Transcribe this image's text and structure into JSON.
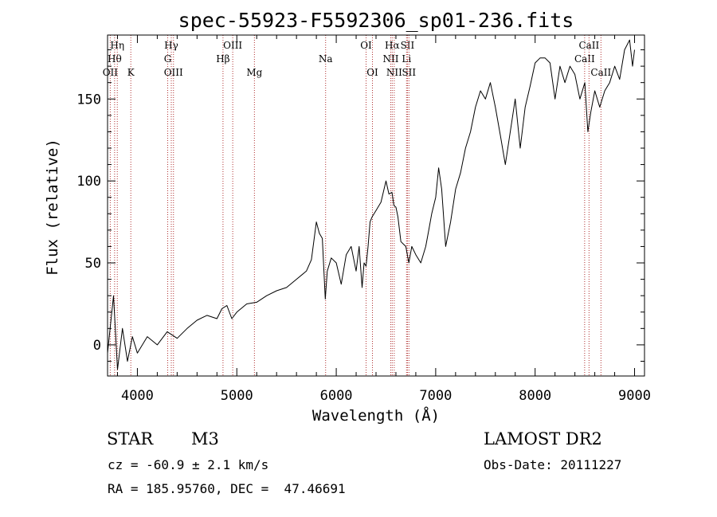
{
  "chart_data": {
    "type": "line",
    "title": "spec-55923-F5592306_sp01-236.fits",
    "xlabel": "Wavelength (Å)",
    "ylabel": "Flux (relative)",
    "xlim": [
      3700,
      9100
    ],
    "ylim": [
      -19,
      189
    ],
    "x_ticks": [
      4000,
      5000,
      6000,
      7000,
      8000,
      9000
    ],
    "y_ticks": [
      0,
      50,
      100,
      150
    ],
    "grid": false,
    "series": [
      {
        "x": [
          3700,
          3760,
          3800,
          3850,
          3900,
          3950,
          4000,
          4100,
          4200,
          4300,
          4400,
          4500,
          4600,
          4700,
          4800,
          4850,
          4900,
          4950,
          5000,
          5100,
          5200,
          5300,
          5400,
          5500,
          5600,
          5700,
          5750,
          5800,
          5830,
          5860,
          5890,
          5910,
          5950,
          6000,
          6050,
          6100,
          6150,
          6200,
          6230,
          6260,
          6280,
          6300,
          6320,
          6340,
          6360,
          6400,
          6450,
          6500,
          6530,
          6560,
          6580,
          6600,
          6620,
          6650,
          6700,
          6730,
          6760,
          6800,
          6850,
          6900,
          6930,
          6960,
          7000,
          7030,
          7060,
          7100,
          7150,
          7200,
          7250,
          7300,
          7350,
          7400,
          7450,
          7500,
          7550,
          7600,
          7650,
          7700,
          7750,
          7800,
          7850,
          7900,
          7950,
          8000,
          8050,
          8100,
          8150,
          8200,
          8250,
          8300,
          8350,
          8400,
          8450,
          8500,
          8530,
          8560,
          8600,
          8650,
          8700,
          8750,
          8800,
          8850,
          8900,
          8950,
          8980,
          9000
        ],
        "y": [
          -5,
          30,
          -15,
          10,
          -10,
          5,
          -5,
          5,
          0,
          8,
          4,
          10,
          15,
          18,
          16,
          22,
          24,
          16,
          20,
          25,
          26,
          30,
          33,
          35,
          40,
          45,
          52,
          75,
          68,
          65,
          28,
          45,
          53,
          50,
          37,
          55,
          60,
          45,
          60,
          35,
          50,
          48,
          60,
          75,
          78,
          82,
          87,
          100,
          92,
          93,
          85,
          84,
          78,
          63,
          60,
          50,
          60,
          55,
          50,
          60,
          70,
          80,
          90,
          108,
          95,
          60,
          75,
          95,
          105,
          120,
          130,
          145,
          155,
          150,
          160,
          145,
          128,
          110,
          130,
          150,
          120,
          145,
          158,
          172,
          175,
          175,
          172,
          150,
          170,
          160,
          170,
          165,
          150,
          160,
          130,
          142,
          155,
          145,
          155,
          160,
          170,
          162,
          180,
          186,
          170,
          180
        ]
      }
    ],
    "lines": [
      {
        "w": 3727,
        "label": "OII",
        "row": 3
      },
      {
        "w": 3771,
        "label": "Hθ",
        "row": 2
      },
      {
        "w": 3798,
        "label": "Hη",
        "row": 1
      },
      {
        "w": 3934,
        "label": "K",
        "row": 3
      },
      {
        "w": 4305,
        "label": "G",
        "row": 2
      },
      {
        "w": 4341,
        "label": "Hγ",
        "row": 1
      },
      {
        "w": 4363,
        "label": "OIII",
        "row": 3
      },
      {
        "w": 4861,
        "label": "Hβ",
        "row": 2
      },
      {
        "w": 4959,
        "label": "OIII",
        "row": 1
      },
      {
        "w": 5177,
        "label": "Mg",
        "row": 3
      },
      {
        "w": 5893,
        "label": "Na",
        "row": 2
      },
      {
        "w": 6300,
        "label": "OI",
        "row": 1
      },
      {
        "w": 6364,
        "label": "OI",
        "row": 3
      },
      {
        "w": 6548,
        "label": "NII",
        "row": 2
      },
      {
        "w": 6563,
        "label": "Hα",
        "row": 1
      },
      {
        "w": 6583,
        "label": "NII",
        "row": 3
      },
      {
        "w": 6707,
        "label": "Li",
        "row": 2
      },
      {
        "w": 6716,
        "label": "SII",
        "row": 1
      },
      {
        "w": 6731,
        "label": "SII",
        "row": 3
      },
      {
        "w": 8498,
        "label": "CaII",
        "row": 2
      },
      {
        "w": 8542,
        "label": "CaII",
        "row": 1
      },
      {
        "w": 8662,
        "label": "CaII",
        "row": 3
      }
    ]
  },
  "info": {
    "class": "STAR",
    "subclass": "M3",
    "survey": "LAMOST DR2",
    "cz": "cz = -60.9 ± 2.1 km/s",
    "obs_date": "Obs-Date: 20111227",
    "coords": "RA = 185.95760, DEC =  47.46691"
  }
}
